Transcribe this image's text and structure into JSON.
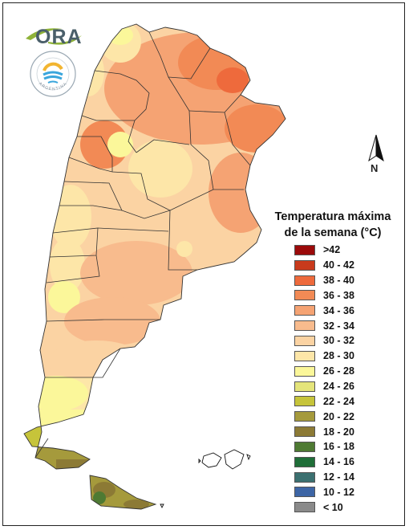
{
  "logo": {
    "text": "ORA",
    "accent": "#8fb339"
  },
  "seal": {
    "ring_text": "ARGENTINA",
    "icon": "weather-service-seal-icon"
  },
  "compass": {
    "label": "N",
    "icon": "north-arrow-icon"
  },
  "legend": {
    "title_line1": "Temperatura máxima",
    "title_line2": "de la semana (°C)",
    "items": [
      {
        "label": ">42",
        "color": "#9b0a0a"
      },
      {
        "label": "40 - 42",
        "color": "#c83a1c"
      },
      {
        "label": "38 - 40",
        "color": "#ee6a3c"
      },
      {
        "label": "36 - 38",
        "color": "#f28a55"
      },
      {
        "label": "34 - 36",
        "color": "#f5a373"
      },
      {
        "label": "32 - 34",
        "color": "#f8bb8d"
      },
      {
        "label": "30 - 32",
        "color": "#fbd3a3"
      },
      {
        "label": "28 - 30",
        "color": "#fde6a8"
      },
      {
        "label": "26 - 28",
        "color": "#fbf79a"
      },
      {
        "label": "24 - 26",
        "color": "#e4e47a"
      },
      {
        "label": "22 - 24",
        "color": "#c6c43a"
      },
      {
        "label": "20 - 22",
        "color": "#a59a3c"
      },
      {
        "label": "18 - 20",
        "color": "#8c7a35"
      },
      {
        "label": "16 - 18",
        "color": "#4e7a33"
      },
      {
        "label": "14 - 16",
        "color": "#1f6e38"
      },
      {
        "label": "12 - 14",
        "color": "#3b7070"
      },
      {
        "label": "10 - 12",
        "color": "#3d65a5"
      },
      {
        "label": "< 10",
        "color": "#8a8a8a"
      }
    ]
  }
}
